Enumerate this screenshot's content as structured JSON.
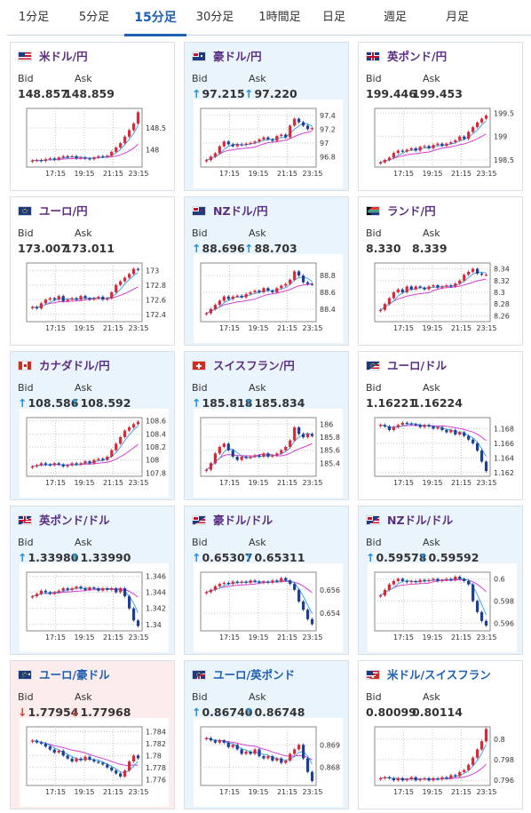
{
  "tabs": [
    {
      "label": "1分足"
    },
    {
      "label": "5分足"
    },
    {
      "label": "15分足",
      "active": true
    },
    {
      "label": "30分足"
    },
    {
      "label": "1時間足"
    },
    {
      "label": "日足"
    },
    {
      "label": "週足"
    },
    {
      "label": "月足"
    }
  ],
  "labels": {
    "bid": "Bid",
    "ask": "Ask"
  },
  "colors": {
    "accent": "#1d5fb1",
    "up_bg": "#e9f4fc",
    "down_bg": "#fcecec",
    "candle_up": "#d9283a",
    "candle_down": "#1c3f94",
    "ma_fast": "#3fa8e6",
    "ma_slow": "#d43fd2"
  },
  "pairs": [
    {
      "name": "米ドル/円",
      "flag": "us-flag",
      "bid": "148.857",
      "ask": "148.859",
      "arrow": "",
      "bg": "none",
      "chart_data": {
        "type": "line",
        "x_ticks": [
          "17:15",
          "19:15",
          "21:15",
          "23:15"
        ],
        "y_ticks": [
          "148",
          "148.5"
        ],
        "ylim": [
          147.6,
          148.95
        ],
        "close": [
          147.75,
          147.76,
          147.74,
          147.78,
          147.8,
          147.77,
          147.82,
          147.85,
          147.83,
          147.85,
          147.8,
          147.82,
          147.8,
          147.78,
          147.82,
          147.85,
          147.84,
          147.86,
          147.95,
          148.05,
          148.15,
          148.3,
          148.45,
          148.6,
          148.86
        ]
      }
    },
    {
      "name": "豪ドル/円",
      "flag": "au-flag",
      "bid": "97.215",
      "ask": "97.220",
      "arrow": "up",
      "bg": "up",
      "chart_data": {
        "type": "line",
        "x_ticks": [
          "17:15",
          "19:15",
          "21:15",
          "23:15"
        ],
        "y_ticks": [
          "96.8",
          "97",
          "97.2",
          "97.4"
        ],
        "ylim": [
          96.65,
          97.5
        ],
        "close": [
          96.75,
          96.8,
          96.85,
          96.95,
          97.02,
          96.98,
          96.95,
          96.98,
          96.97,
          96.99,
          97.0,
          97.02,
          97.05,
          97.08,
          97.05,
          97.03,
          97.1,
          97.12,
          97.08,
          97.25,
          97.35,
          97.3,
          97.25,
          97.2,
          97.215
        ]
      }
    },
    {
      "name": "英ポンド/円",
      "flag": "gb-flag",
      "bid": "199.446",
      "ask": "199.453",
      "arrow": "",
      "bg": "none",
      "chart_data": {
        "type": "line",
        "x_ticks": [
          "17:15",
          "19:15",
          "21:15",
          "23:15"
        ],
        "y_ticks": [
          "198.5",
          "199",
          "199.5"
        ],
        "ylim": [
          198.35,
          199.6
        ],
        "close": [
          198.45,
          198.5,
          198.55,
          198.65,
          198.7,
          198.68,
          198.72,
          198.75,
          198.7,
          198.78,
          198.8,
          198.75,
          198.82,
          198.85,
          198.8,
          198.85,
          198.88,
          198.92,
          199.0,
          198.95,
          199.1,
          199.2,
          199.3,
          199.38,
          199.446
        ]
      }
    },
    {
      "name": "ユーロ/円",
      "flag": "eu-flag",
      "bid": "173.007",
      "ask": "173.011",
      "arrow": "",
      "bg": "none",
      "chart_data": {
        "type": "line",
        "x_ticks": [
          "17:15",
          "19:15",
          "21:15",
          "23:15"
        ],
        "y_ticks": [
          "172.4",
          "172.6",
          "172.8",
          "173"
        ],
        "ylim": [
          172.3,
          173.1
        ],
        "close": [
          172.5,
          172.48,
          172.55,
          172.6,
          172.62,
          172.6,
          172.65,
          172.58,
          172.6,
          172.62,
          172.6,
          172.65,
          172.62,
          172.6,
          172.62,
          172.64,
          172.6,
          172.62,
          172.7,
          172.8,
          172.85,
          172.9,
          172.95,
          173.02,
          173.007
        ]
      }
    },
    {
      "name": "NZドル/円",
      "flag": "nz-flag",
      "bid": "88.696",
      "ask": "88.703",
      "arrow": "up",
      "bg": "up",
      "chart_data": {
        "type": "line",
        "x_ticks": [
          "17:15",
          "19:15",
          "21:15",
          "23:15"
        ],
        "y_ticks": [
          "88.4",
          "88.6",
          "88.8"
        ],
        "ylim": [
          88.25,
          88.95
        ],
        "close": [
          88.35,
          88.4,
          88.45,
          88.5,
          88.55,
          88.52,
          88.55,
          88.56,
          88.54,
          88.58,
          88.6,
          88.62,
          88.6,
          88.65,
          88.62,
          88.6,
          88.65,
          88.68,
          88.7,
          88.75,
          88.85,
          88.8,
          88.72,
          88.7,
          88.696
        ]
      }
    },
    {
      "name": "ランド/円",
      "flag": "za-flag",
      "bid": "8.330",
      "ask": "8.339",
      "arrow": "",
      "bg": "none",
      "chart_data": {
        "type": "line",
        "x_ticks": [
          "17:15",
          "19:15",
          "21:15",
          "23:15"
        ],
        "y_ticks": [
          "8.26",
          "8.28",
          "8.3",
          "8.32",
          "8.34"
        ],
        "ylim": [
          8.25,
          8.35
        ],
        "close": [
          8.27,
          8.28,
          8.29,
          8.3,
          8.305,
          8.3,
          8.31,
          8.305,
          8.31,
          8.308,
          8.305,
          8.31,
          8.312,
          8.308,
          8.31,
          8.312,
          8.31,
          8.315,
          8.32,
          8.33,
          8.335,
          8.34,
          8.332,
          8.33,
          8.33
        ]
      }
    },
    {
      "name": "カナダドル/円",
      "flag": "ca-flag",
      "bid": "108.586",
      "ask": "108.592",
      "arrow": "up",
      "bg": "up",
      "chart_data": {
        "type": "line",
        "x_ticks": [
          "17:15",
          "19:15",
          "21:15",
          "23:15"
        ],
        "y_ticks": [
          "107.8",
          "108",
          "108.2",
          "108.4",
          "108.6"
        ],
        "ylim": [
          107.75,
          108.65
        ],
        "close": [
          107.9,
          107.92,
          107.95,
          107.93,
          107.92,
          107.95,
          107.93,
          107.9,
          107.92,
          107.95,
          107.93,
          107.95,
          107.98,
          107.95,
          108.0,
          108.02,
          108.0,
          108.05,
          108.15,
          108.25,
          108.35,
          108.45,
          108.5,
          108.55,
          108.586
        ]
      }
    },
    {
      "name": "スイスフラン/円",
      "flag": "ch-flag",
      "bid": "185.818",
      "ask": "185.834",
      "arrow": "up",
      "bg": "up",
      "chart_data": {
        "type": "line",
        "x_ticks": [
          "17:15",
          "19:15",
          "21:15",
          "23:15"
        ],
        "y_ticks": [
          "185.4",
          "185.6",
          "185.8",
          "186"
        ],
        "ylim": [
          185.2,
          186.1
        ],
        "close": [
          185.3,
          185.4,
          185.55,
          185.65,
          185.7,
          185.6,
          185.5,
          185.45,
          185.5,
          185.48,
          185.5,
          185.52,
          185.5,
          185.55,
          185.5,
          185.52,
          185.55,
          185.6,
          185.65,
          185.75,
          185.95,
          185.85,
          185.8,
          185.85,
          185.818
        ]
      }
    },
    {
      "name": "ユーロ/ドル",
      "flag": "eu-us-flag",
      "bid": "1.16221",
      "ask": "1.16224",
      "arrow": "",
      "bg": "none",
      "chart_data": {
        "type": "line",
        "x_ticks": [
          "17:15",
          "19:15",
          "21:15",
          "23:15"
        ],
        "y_ticks": [
          "1.162",
          "1.164",
          "1.166",
          "1.168"
        ],
        "ylim": [
          1.1615,
          1.1695
        ],
        "close": [
          1.1685,
          1.1683,
          1.1678,
          1.1682,
          1.1685,
          1.1688,
          1.1687,
          1.1686,
          1.1685,
          1.1682,
          1.1685,
          1.1683,
          1.168,
          1.1682,
          1.1678,
          1.1675,
          1.1678,
          1.1672,
          1.1675,
          1.167,
          1.1665,
          1.166,
          1.165,
          1.1635,
          1.16221
        ]
      }
    },
    {
      "name": "英ポンド/ドル",
      "flag": "gb-us-flag",
      "bid": "1.33980",
      "ask": "1.33990",
      "arrow": "up",
      "bg": "up",
      "chart_data": {
        "type": "line",
        "x_ticks": [
          "17:15",
          "19:15",
          "21:15",
          "23:15"
        ],
        "y_ticks": [
          "1.34",
          "1.342",
          "1.344",
          "1.346"
        ],
        "ylim": [
          1.3392,
          1.3465
        ],
        "close": [
          1.3435,
          1.3438,
          1.3442,
          1.344,
          1.3438,
          1.344,
          1.3442,
          1.3445,
          1.3443,
          1.3445,
          1.3447,
          1.3445,
          1.3443,
          1.3446,
          1.3445,
          1.3442,
          1.3445,
          1.3443,
          1.3445,
          1.344,
          1.3445,
          1.3435,
          1.342,
          1.3405,
          1.3398
        ]
      }
    },
    {
      "name": "豪ドル/ドル",
      "flag": "au-us-flag",
      "bid": "0.65307",
      "ask": "0.65311",
      "arrow": "up",
      "bg": "up",
      "chart_data": {
        "type": "line",
        "x_ticks": [
          "17:15",
          "19:15",
          "21:15",
          "23:15"
        ],
        "y_ticks": [
          "0.654",
          "0.656"
        ],
        "ylim": [
          0.6525,
          0.6575
        ],
        "close": [
          0.6558,
          0.656,
          0.6563,
          0.6565,
          0.6566,
          0.6565,
          0.6567,
          0.6566,
          0.6567,
          0.6566,
          0.6568,
          0.6567,
          0.6566,
          0.6567,
          0.6566,
          0.6568,
          0.6567,
          0.657,
          0.6568,
          0.6565,
          0.656,
          0.655,
          0.6543,
          0.6535,
          0.65307
        ]
      }
    },
    {
      "name": "NZドル/ドル",
      "flag": "nz-us-flag",
      "bid": "0.59578",
      "ask": "0.59592",
      "arrow": "up",
      "bg": "up",
      "chart_data": {
        "type": "line",
        "x_ticks": [
          "17:15",
          "19:15",
          "21:15",
          "23:15"
        ],
        "y_ticks": [
          "0.596",
          "0.598",
          "0.6"
        ],
        "ylim": [
          0.5953,
          0.6006
        ],
        "close": [
          0.5985,
          0.599,
          0.5995,
          0.5998,
          0.6,
          0.5998,
          0.5997,
          0.5998,
          0.5997,
          0.5999,
          0.5998,
          0.5999,
          0.6,
          0.5998,
          0.5999,
          0.6,
          0.5999,
          0.6002,
          0.6,
          0.5998,
          0.5995,
          0.598,
          0.597,
          0.5962,
          0.59578
        ]
      }
    },
    {
      "name": "ユーロ/豪ドル",
      "flag": "eu-au-flag",
      "bid": "1.77954",
      "ask": "1.77968",
      "arrow": "down",
      "bg": "down",
      "chart_data": {
        "type": "line",
        "x_ticks": [
          "17:15",
          "19:15",
          "21:15",
          "23:15"
        ],
        "y_ticks": [
          "1.776",
          "1.778",
          "1.78",
          "1.782",
          "1.784"
        ],
        "ylim": [
          1.775,
          1.7848
        ],
        "close": [
          1.7825,
          1.7822,
          1.782,
          1.7815,
          1.781,
          1.7805,
          1.7808,
          1.78,
          1.7795,
          1.779,
          1.7795,
          1.7792,
          1.7798,
          1.7793,
          1.779,
          1.7788,
          1.7785,
          1.778,
          1.7775,
          1.777,
          1.7765,
          1.7775,
          1.779,
          1.78,
          1.77954
        ]
      }
    },
    {
      "name": "ユーロ/英ポンド",
      "flag": "eu-gb-flag",
      "bid": "0.86740",
      "ask": "0.86748",
      "arrow": "up",
      "bg": "up",
      "chart_data": {
        "type": "line",
        "x_ticks": [
          "17:15",
          "19:15",
          "21:15",
          "23:15"
        ],
        "y_ticks": [
          "0.868",
          "0.869"
        ],
        "ylim": [
          0.8672,
          0.8698
        ],
        "close": [
          0.8693,
          0.8692,
          0.8691,
          0.8692,
          0.8691,
          0.8689,
          0.869,
          0.8688,
          0.8686,
          0.8687,
          0.8686,
          0.8688,
          0.8685,
          0.8684,
          0.8685,
          0.8683,
          0.8684,
          0.8682,
          0.8683,
          0.8686,
          0.8688,
          0.869,
          0.8684,
          0.8678,
          0.8674
        ]
      }
    },
    {
      "name": "米ドル/スイスフラン",
      "flag": "us-ch-flag",
      "bid": "0.80099",
      "ask": "0.80114",
      "arrow": "",
      "bg": "none",
      "chart_data": {
        "type": "line",
        "x_ticks": [
          "17:15",
          "19:15",
          "21:15",
          "23:15"
        ],
        "y_ticks": [
          "0.796",
          "0.798",
          "0.8"
        ],
        "ylim": [
          0.7955,
          0.8012
        ],
        "close": [
          0.7962,
          0.7963,
          0.7962,
          0.796,
          0.7962,
          0.796,
          0.7961,
          0.7963,
          0.796,
          0.7961,
          0.7962,
          0.796,
          0.7962,
          0.7961,
          0.7963,
          0.7962,
          0.7965,
          0.7964,
          0.7968,
          0.797,
          0.7975,
          0.7982,
          0.799,
          0.7998,
          0.80099
        ]
      }
    }
  ]
}
